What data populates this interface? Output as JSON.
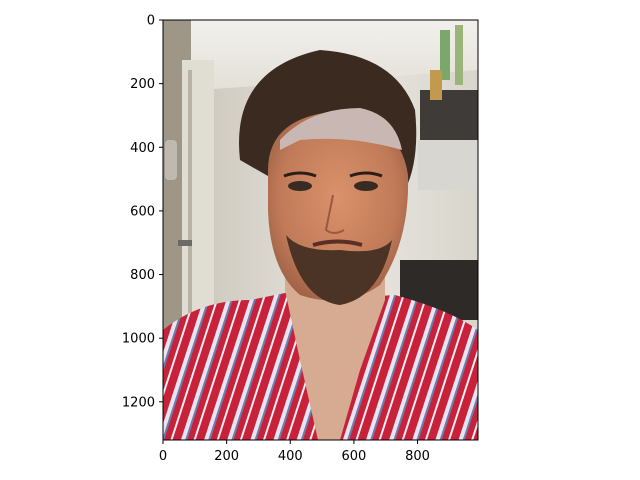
{
  "chart_data": {
    "type": "image",
    "image_subject": "selfie of man with dark hair and beard, red striped shirt, kitchen background, pale forehead patch",
    "x_ticks": [
      0,
      200,
      400,
      600,
      800
    ],
    "y_ticks": [
      0,
      200,
      400,
      600,
      800,
      1000,
      1200
    ],
    "x_extent": [
      0,
      990
    ],
    "y_extent": [
      0,
      1320
    ],
    "y_inverted": true,
    "grid": false
  }
}
